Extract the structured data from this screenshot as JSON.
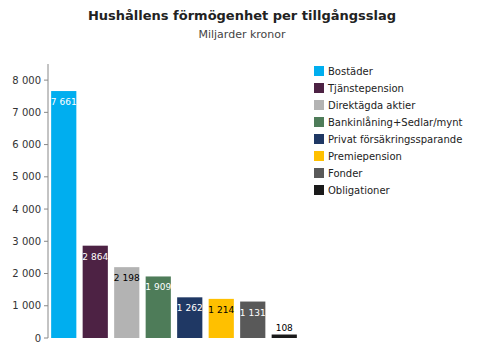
{
  "chart_data": {
    "type": "bar",
    "title": "Hushållens förmögenhet per tillgångsslag",
    "subtitle": "Miljarder kronor",
    "categories": [
      "Bostäder",
      "Tjänstepension",
      "Direktägda aktier",
      "Bankinlåning+Sedlar/mynt",
      "Privat försäkringssparande",
      "Premiepension",
      "Fonder",
      "Obligationer"
    ],
    "values": [
      7661,
      2864,
      2198,
      1909,
      1262,
      1214,
      1131,
      108
    ],
    "value_labels": [
      "7 661",
      "2 864",
      "2 198",
      "1 909",
      "1 262",
      "1 214",
      "1 131",
      "108"
    ],
    "colors": [
      "#00aeef",
      "#4d2244",
      "#b3b3b3",
      "#4e7c59",
      "#1f3864",
      "#ffc000",
      "#595959",
      "#1a1a1a"
    ],
    "ylim": [
      0,
      8500
    ],
    "yticks": [
      0,
      {
        "value": 1000,
        "label": "1 000"
      },
      {
        "value": 2000,
        "label": "2 000"
      },
      {
        "value": 3000,
        "label": "3 000"
      },
      {
        "value": 4000,
        "label": "4 000"
      },
      {
        "value": 5000,
        "label": "5 000"
      },
      {
        "value": 6000,
        "label": "6 000"
      },
      {
        "value": 7000,
        "label": "7 000"
      },
      {
        "value": 8000,
        "label": "8 000"
      }
    ],
    "grid": false,
    "legend": "right",
    "data_labels": true,
    "tick_labels": "y"
  }
}
